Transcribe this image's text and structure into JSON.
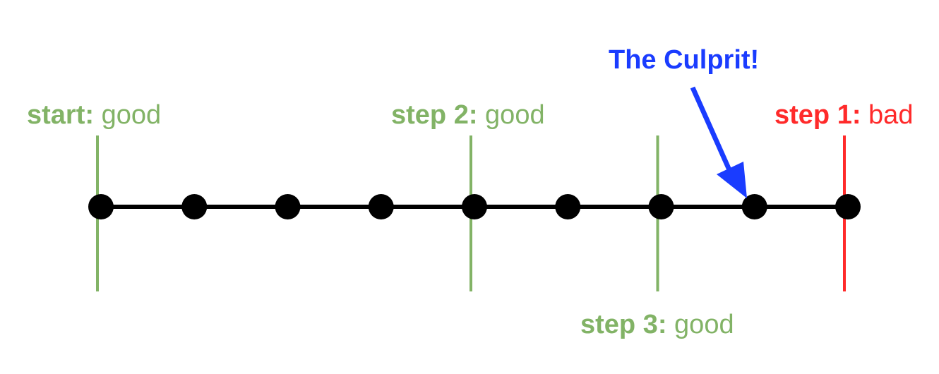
{
  "labels": {
    "start": {
      "key": "start:",
      "value": "good"
    },
    "step2": {
      "key": "step 2:",
      "value": "good"
    },
    "step1": {
      "key": "step 1:",
      "value": "bad"
    },
    "step3": {
      "key": "step 3:",
      "value": "good"
    }
  },
  "callout": {
    "text": "The Culprit!"
  },
  "colors": {
    "good": "#82b366",
    "bad": "#ff2a2a",
    "callout": "#1a3cff",
    "timeline": "#000000"
  },
  "timeline": {
    "commit_count": 9,
    "culprit_index": 7,
    "markers": [
      {
        "name": "start",
        "commit_index": 0,
        "status": "good"
      },
      {
        "name": "step 2",
        "commit_index": 4,
        "status": "good"
      },
      {
        "name": "step 3",
        "commit_index": 6,
        "status": "good"
      },
      {
        "name": "step 1",
        "commit_index": 8,
        "status": "bad"
      }
    ]
  }
}
